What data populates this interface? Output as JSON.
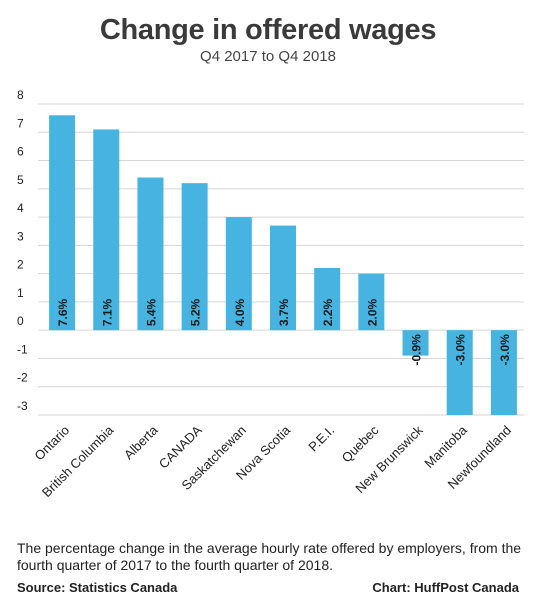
{
  "title": "Change in offered wages",
  "subtitle": "Q4 2017 to Q4 2018",
  "caption": "The percentage change in the average hourly rate offered by employers, from the fourth quarter of 2017 to the fourth quarter of 2018.",
  "source": "Source: Statistics Canada",
  "credit": "Chart: HuffPost Canada",
  "colors": {
    "bar": "#46b3e0",
    "grid": "#d6d6d6",
    "text": "#222222"
  },
  "chart_data": {
    "type": "bar",
    "title": "Change in offered wages",
    "subtitle": "Q4 2017 to Q4 2018",
    "categories": [
      "Ontario",
      "British Columbia",
      "Alberta",
      "CANADA",
      "Saskatchewan",
      "Nova Scotia",
      "P.E.I.",
      "Quebec",
      "New Brunswick",
      "Manitoba",
      "Newfoundland"
    ],
    "values": [
      7.6,
      7.1,
      5.4,
      5.2,
      4.0,
      3.7,
      2.2,
      2.0,
      -0.9,
      -3.0,
      -3.0
    ],
    "data_labels": [
      "7.6%",
      "7.1%",
      "5.4%",
      "5.2%",
      "4.0%",
      "3.7%",
      "2.2%",
      "2.0%",
      "-0.9%",
      "-3.0%",
      "-3.0%"
    ],
    "y_ticks": [
      "-3",
      "-2",
      "-1",
      "0",
      "1",
      "2",
      "3",
      "4",
      "5",
      "6",
      "7",
      "8"
    ],
    "ylim": [
      -3,
      8
    ],
    "grid": true,
    "legend": "none"
  }
}
